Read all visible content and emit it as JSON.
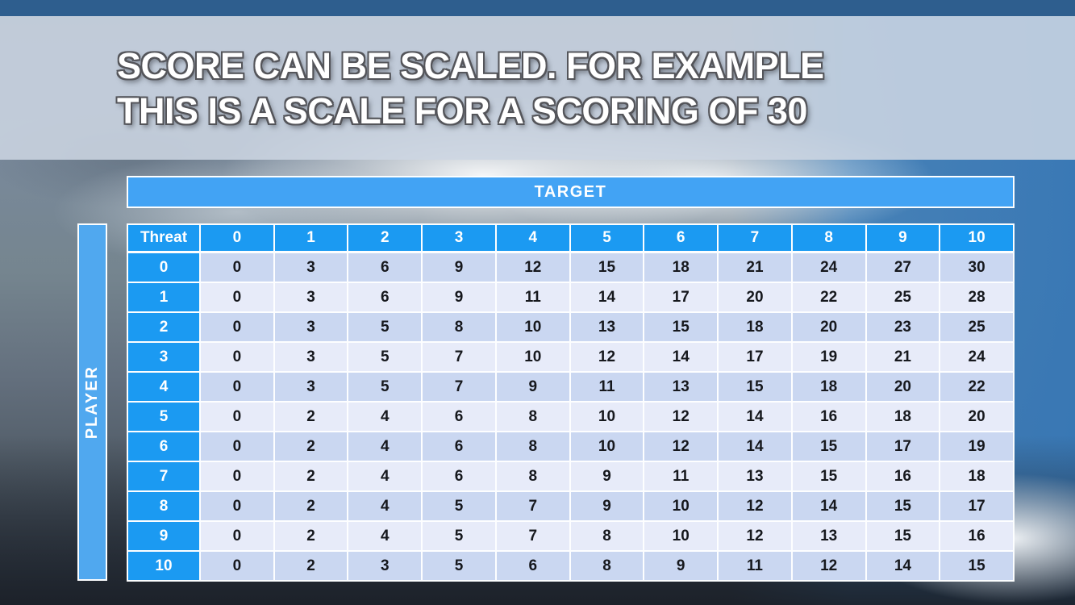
{
  "slide": {
    "title_line1": "SCORE CAN BE SCALED. FOR EXAMPLE",
    "title_line2": "THIS IS A SCALE FOR A SCORING OF 30"
  },
  "matrix": {
    "column_axis_label": "TARGET",
    "row_axis_label": "PLAYER",
    "corner_label": "Threat",
    "column_headers": [
      "0",
      "1",
      "2",
      "3",
      "4",
      "5",
      "6",
      "7",
      "8",
      "9",
      "10"
    ],
    "row_headers": [
      "0",
      "1",
      "2",
      "3",
      "4",
      "5",
      "6",
      "7",
      "8",
      "9",
      "10"
    ],
    "rows": [
      [
        0,
        3,
        6,
        9,
        12,
        15,
        18,
        21,
        24,
        27,
        30
      ],
      [
        0,
        3,
        6,
        9,
        11,
        14,
        17,
        20,
        22,
        25,
        28
      ],
      [
        0,
        3,
        5,
        8,
        10,
        13,
        15,
        18,
        20,
        23,
        25
      ],
      [
        0,
        3,
        5,
        7,
        10,
        12,
        14,
        17,
        19,
        21,
        24
      ],
      [
        0,
        3,
        5,
        7,
        9,
        11,
        13,
        15,
        18,
        20,
        22
      ],
      [
        0,
        2,
        4,
        6,
        8,
        10,
        12,
        14,
        16,
        18,
        20
      ],
      [
        0,
        2,
        4,
        6,
        8,
        10,
        12,
        14,
        15,
        17,
        19
      ],
      [
        0,
        2,
        4,
        6,
        8,
        9,
        11,
        13,
        15,
        16,
        18
      ],
      [
        0,
        2,
        4,
        5,
        7,
        9,
        10,
        12,
        14,
        15,
        17
      ],
      [
        0,
        2,
        4,
        5,
        7,
        8,
        10,
        12,
        13,
        15,
        16
      ],
      [
        0,
        2,
        3,
        5,
        6,
        8,
        9,
        11,
        12,
        14,
        15
      ]
    ]
  },
  "colors": {
    "header_blue": "#1b9af2",
    "band_blue": "#42a3f4",
    "side_blue": "#50a8ef",
    "row_even": "#cad7f1",
    "row_odd": "#e7ebf9",
    "top_bar": "#2e5e8e",
    "title_band": "#ccd6e2"
  }
}
